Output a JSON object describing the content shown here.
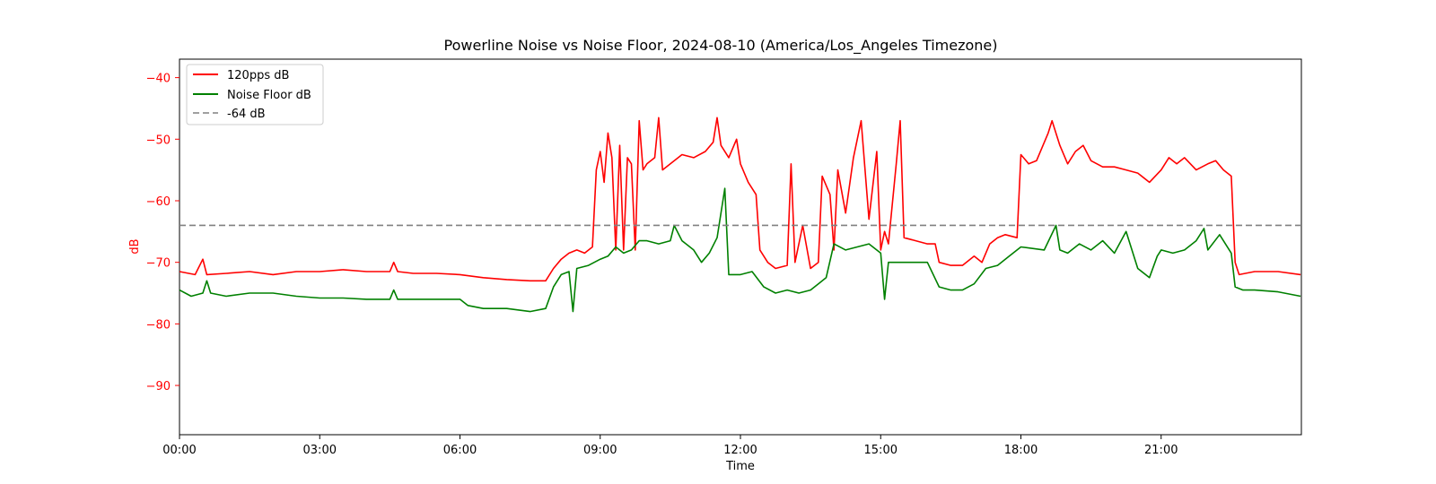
{
  "chart_data": {
    "type": "line",
    "title": "Powerline Noise vs Noise Floor, 2024-08-10 (America/Los_Angeles Timezone)",
    "xlabel": "Time",
    "ylabel": "dB",
    "xlim": [
      "00:00",
      "24:00"
    ],
    "ylim": [
      -98,
      -37
    ],
    "x_ticks": [
      "00:00",
      "03:00",
      "06:00",
      "09:00",
      "12:00",
      "15:00",
      "18:00",
      "21:00"
    ],
    "y_ticks": [
      -40,
      -50,
      -60,
      -70,
      -80,
      -90
    ],
    "legend": {
      "position": "top-left"
    },
    "grid": false,
    "colors": {
      "powerline": "#ff0000",
      "noise_floor": "#008000",
      "reference": "#808080",
      "y_axis": "#ff0000"
    },
    "reference_line": {
      "name": "-64 dB",
      "y": -64,
      "style": "dashed"
    },
    "series": [
      {
        "name": "120pps dB",
        "color": "#ff0000",
        "points": [
          [
            "00:00",
            -71.5
          ],
          [
            "00:20",
            -72
          ],
          [
            "00:30",
            -69.5
          ],
          [
            "00:35",
            -72
          ],
          [
            "01:00",
            -71.8
          ],
          [
            "01:30",
            -71.5
          ],
          [
            "02:00",
            -72
          ],
          [
            "02:30",
            -71.5
          ],
          [
            "03:00",
            -71.5
          ],
          [
            "03:30",
            -71.2
          ],
          [
            "04:00",
            -71.5
          ],
          [
            "04:30",
            -71.5
          ],
          [
            "04:35",
            -70
          ],
          [
            "04:40",
            -71.5
          ],
          [
            "05:00",
            -71.8
          ],
          [
            "05:30",
            -71.8
          ],
          [
            "06:00",
            -72
          ],
          [
            "06:30",
            -72.5
          ],
          [
            "07:00",
            -72.8
          ],
          [
            "07:30",
            -73
          ],
          [
            "07:50",
            -73
          ],
          [
            "08:00",
            -71
          ],
          [
            "08:10",
            -69.5
          ],
          [
            "08:20",
            -68.5
          ],
          [
            "08:30",
            -68
          ],
          [
            "08:40",
            -68.5
          ],
          [
            "08:50",
            -67.5
          ],
          [
            "08:55",
            -55
          ],
          [
            "09:00",
            -52
          ],
          [
            "09:05",
            -57
          ],
          [
            "09:10",
            -49
          ],
          [
            "09:15",
            -53
          ],
          [
            "09:20",
            -68
          ],
          [
            "09:25",
            -51
          ],
          [
            "09:30",
            -68
          ],
          [
            "09:35",
            -53
          ],
          [
            "09:40",
            -54
          ],
          [
            "09:45",
            -68
          ],
          [
            "09:50",
            -47
          ],
          [
            "09:55",
            -55
          ],
          [
            "10:00",
            -54
          ],
          [
            "10:10",
            -53
          ],
          [
            "10:15",
            -46.5
          ],
          [
            "10:20",
            -55
          ],
          [
            "10:30",
            -54
          ],
          [
            "10:45",
            -52.5
          ],
          [
            "11:00",
            -53
          ],
          [
            "11:15",
            -52
          ],
          [
            "11:25",
            -50.5
          ],
          [
            "11:30",
            -46.5
          ],
          [
            "11:35",
            -51
          ],
          [
            "11:45",
            -53
          ],
          [
            "11:55",
            -50
          ],
          [
            "12:00",
            -54
          ],
          [
            "12:10",
            -57
          ],
          [
            "12:20",
            -59
          ],
          [
            "12:25",
            -68
          ],
          [
            "12:35",
            -70
          ],
          [
            "12:45",
            -71
          ],
          [
            "13:00",
            -70.5
          ],
          [
            "13:05",
            -54
          ],
          [
            "13:10",
            -70
          ],
          [
            "13:20",
            -64
          ],
          [
            "13:30",
            -71
          ],
          [
            "13:40",
            -70
          ],
          [
            "13:45",
            -56
          ],
          [
            "13:55",
            -59
          ],
          [
            "14:00",
            -68
          ],
          [
            "14:05",
            -55
          ],
          [
            "14:15",
            -62
          ],
          [
            "14:25",
            -53
          ],
          [
            "14:35",
            -47
          ],
          [
            "14:45",
            -63
          ],
          [
            "14:55",
            -52
          ],
          [
            "15:00",
            -68
          ],
          [
            "15:05",
            -65
          ],
          [
            "15:10",
            -67
          ],
          [
            "15:20",
            -54
          ],
          [
            "15:25",
            -47
          ],
          [
            "15:30",
            -66
          ],
          [
            "15:45",
            -66.5
          ],
          [
            "16:00",
            -67
          ],
          [
            "16:10",
            -67
          ],
          [
            "16:15",
            -70
          ],
          [
            "16:30",
            -70.5
          ],
          [
            "16:45",
            -70.5
          ],
          [
            "17:00",
            -69
          ],
          [
            "17:10",
            -70
          ],
          [
            "17:20",
            -67
          ],
          [
            "17:30",
            -66
          ],
          [
            "17:40",
            -65.5
          ],
          [
            "17:55",
            -66
          ],
          [
            "18:00",
            -52.5
          ],
          [
            "18:10",
            -54
          ],
          [
            "18:20",
            -53.5
          ],
          [
            "18:35",
            -49
          ],
          [
            "18:40",
            -47
          ],
          [
            "18:50",
            -51
          ],
          [
            "19:00",
            -54
          ],
          [
            "19:10",
            -52
          ],
          [
            "19:20",
            -51
          ],
          [
            "19:30",
            -53.5
          ],
          [
            "19:45",
            -54.5
          ],
          [
            "20:00",
            -54.5
          ],
          [
            "20:15",
            -55
          ],
          [
            "20:30",
            -55.5
          ],
          [
            "20:45",
            -57
          ],
          [
            "21:00",
            -55
          ],
          [
            "21:10",
            -53
          ],
          [
            "21:20",
            -54
          ],
          [
            "21:30",
            -53
          ],
          [
            "21:45",
            -55
          ],
          [
            "22:00",
            -54
          ],
          [
            "22:10",
            -53.5
          ],
          [
            "22:20",
            -55
          ],
          [
            "22:30",
            -56
          ],
          [
            "22:35",
            -70
          ],
          [
            "22:40",
            -72
          ],
          [
            "23:00",
            -71.5
          ],
          [
            "23:30",
            -71.5
          ],
          [
            "23:59",
            -72
          ]
        ]
      },
      {
        "name": "Noise Floor dB",
        "color": "#008000",
        "points": [
          [
            "00:00",
            -74.5
          ],
          [
            "00:15",
            -75.5
          ],
          [
            "00:30",
            -75
          ],
          [
            "00:35",
            -73
          ],
          [
            "00:40",
            -75
          ],
          [
            "01:00",
            -75.5
          ],
          [
            "01:30",
            -75
          ],
          [
            "02:00",
            -75
          ],
          [
            "02:30",
            -75.5
          ],
          [
            "03:00",
            -75.8
          ],
          [
            "03:30",
            -75.8
          ],
          [
            "04:00",
            -76
          ],
          [
            "04:30",
            -76
          ],
          [
            "04:35",
            -74.5
          ],
          [
            "04:40",
            -76
          ],
          [
            "05:00",
            -76
          ],
          [
            "05:30",
            -76
          ],
          [
            "06:00",
            -76
          ],
          [
            "06:10",
            -77
          ],
          [
            "06:30",
            -77.5
          ],
          [
            "07:00",
            -77.5
          ],
          [
            "07:30",
            -78
          ],
          [
            "07:50",
            -77.5
          ],
          [
            "08:00",
            -74
          ],
          [
            "08:10",
            -72
          ],
          [
            "08:20",
            -71.5
          ],
          [
            "08:25",
            -78
          ],
          [
            "08:30",
            -71
          ],
          [
            "08:45",
            -70.5
          ],
          [
            "09:00",
            -69.5
          ],
          [
            "09:10",
            -69
          ],
          [
            "09:20",
            -67.5
          ],
          [
            "09:30",
            -68.5
          ],
          [
            "09:40",
            -68
          ],
          [
            "09:50",
            -66.5
          ],
          [
            "10:00",
            -66.5
          ],
          [
            "10:15",
            -67
          ],
          [
            "10:30",
            -66.5
          ],
          [
            "10:35",
            -64
          ],
          [
            "10:45",
            -66.5
          ],
          [
            "11:00",
            -68
          ],
          [
            "11:10",
            -70
          ],
          [
            "11:20",
            -68.5
          ],
          [
            "11:30",
            -66
          ],
          [
            "11:35",
            -62
          ],
          [
            "11:40",
            -58
          ],
          [
            "11:45",
            -72
          ],
          [
            "12:00",
            -72
          ],
          [
            "12:15",
            -71.5
          ],
          [
            "12:30",
            -74
          ],
          [
            "12:45",
            -75
          ],
          [
            "13:00",
            -74.5
          ],
          [
            "13:15",
            -75
          ],
          [
            "13:30",
            -74.5
          ],
          [
            "13:40",
            -73.5
          ],
          [
            "13:50",
            -72.5
          ],
          [
            "14:00",
            -67
          ],
          [
            "14:15",
            -68
          ],
          [
            "14:30",
            -67.5
          ],
          [
            "14:45",
            -67
          ],
          [
            "15:00",
            -68.5
          ],
          [
            "15:05",
            -76
          ],
          [
            "15:10",
            -70
          ],
          [
            "15:30",
            -70
          ],
          [
            "16:00",
            -70
          ],
          [
            "16:15",
            -74
          ],
          [
            "16:30",
            -74.5
          ],
          [
            "16:45",
            -74.5
          ],
          [
            "17:00",
            -73.5
          ],
          [
            "17:15",
            -71
          ],
          [
            "17:30",
            -70.5
          ],
          [
            "17:45",
            -69
          ],
          [
            "18:00",
            -67.5
          ],
          [
            "18:30",
            -68
          ],
          [
            "18:45",
            -64
          ],
          [
            "18:50",
            -68
          ],
          [
            "19:00",
            -68.5
          ],
          [
            "19:15",
            -67
          ],
          [
            "19:30",
            -68
          ],
          [
            "19:45",
            -66.5
          ],
          [
            "20:00",
            -68.5
          ],
          [
            "20:15",
            -65
          ],
          [
            "20:30",
            -71
          ],
          [
            "20:45",
            -72.5
          ],
          [
            "20:55",
            -69
          ],
          [
            "21:00",
            -68
          ],
          [
            "21:15",
            -68.5
          ],
          [
            "21:30",
            -68
          ],
          [
            "21:45",
            -66.5
          ],
          [
            "21:55",
            -64.5
          ],
          [
            "22:00",
            -68
          ],
          [
            "22:15",
            -65.5
          ],
          [
            "22:30",
            -68.5
          ],
          [
            "22:35",
            -74
          ],
          [
            "22:45",
            -74.5
          ],
          [
            "23:00",
            -74.5
          ],
          [
            "23:30",
            -74.8
          ],
          [
            "23:59",
            -75.5
          ]
        ]
      }
    ]
  }
}
